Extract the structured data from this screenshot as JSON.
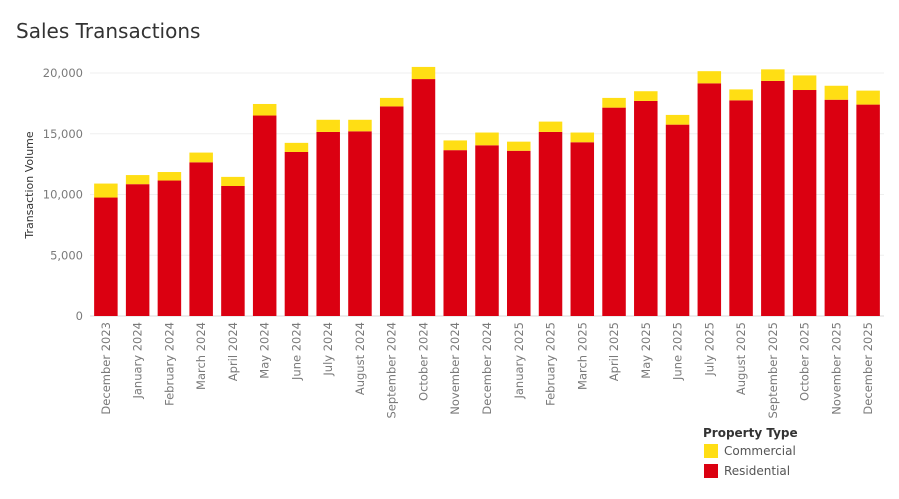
{
  "title": "Sales Transactions",
  "chart_data": {
    "type": "bar",
    "stacked": true,
    "title": "Sales Transactions",
    "xlabel": "",
    "ylabel": "Transaction Volume",
    "ylim": [
      0,
      20000
    ],
    "yticks": [
      0,
      5000,
      10000,
      15000,
      20000
    ],
    "ytick_labels": [
      "0",
      "5,000",
      "10,000",
      "15,000",
      "20,000"
    ],
    "grid": true,
    "legend": {
      "title": "Property Type",
      "position": "bottom-right"
    },
    "categories": [
      "December 2023",
      "January 2024",
      "February 2024",
      "March 2024",
      "April 2024",
      "May 2024",
      "June 2024",
      "July 2024",
      "August 2024",
      "September 2024",
      "October 2024",
      "November 2024",
      "December 2024",
      "January 2025",
      "February 2025",
      "March 2025",
      "April 2025",
      "May 2025",
      "June 2025",
      "July 2025",
      "August 2025",
      "September 2025",
      "October 2025",
      "November 2025",
      "December 2025"
    ],
    "series": [
      {
        "name": "Residential",
        "color": "#db0011",
        "values": [
          9750,
          10850,
          11150,
          12650,
          10700,
          16500,
          13500,
          15150,
          15200,
          17250,
          19500,
          13650,
          14050,
          13600,
          15150,
          14300,
          17150,
          17700,
          15750,
          19150,
          17750,
          19350,
          18600,
          17800,
          17400
        ]
      },
      {
        "name": "Commercial",
        "color": "#ffde14",
        "values": [
          1150,
          750,
          700,
          800,
          750,
          950,
          750,
          1000,
          950,
          700,
          1000,
          800,
          1050,
          750,
          850,
          800,
          800,
          800,
          800,
          1000,
          900,
          950,
          1200,
          1150,
          1150
        ]
      }
    ]
  }
}
